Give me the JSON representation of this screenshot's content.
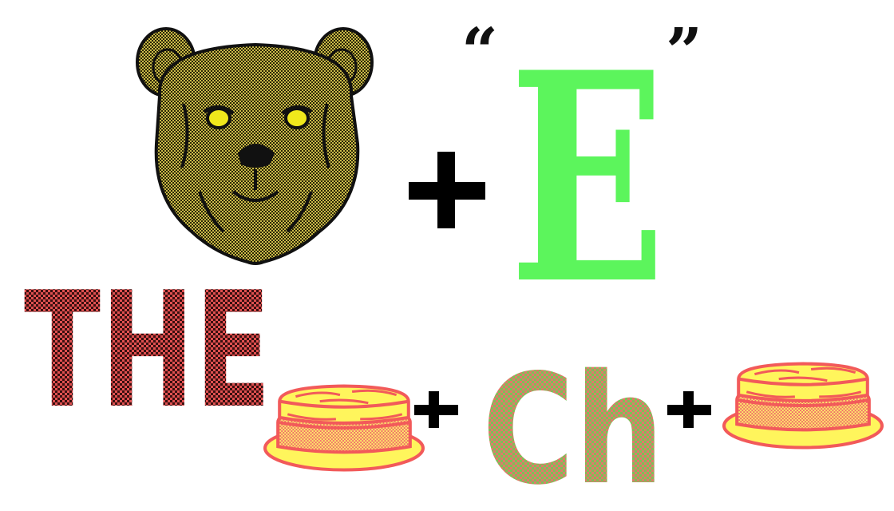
{
  "rebus": {
    "top_letter": "E",
    "quote_open": "“",
    "quote_close": "”",
    "plus_sign": "+",
    "the_word": "THE",
    "ch_word": "Ch"
  },
  "icons": {
    "bear": "bear-face-icon",
    "cheese": "cheese-wheel-icon"
  },
  "colors": {
    "bear_fill": "#b8a63a",
    "bear_dark": "#222200",
    "bear_eye": "#f0e81c",
    "letter_e": "#5cf55c",
    "the_fill": "#c64545",
    "ch_fill": "#7fba55",
    "cheese_outline": "#f25a5a",
    "cheese_fill": "#fff55c",
    "plus": "#000000"
  }
}
